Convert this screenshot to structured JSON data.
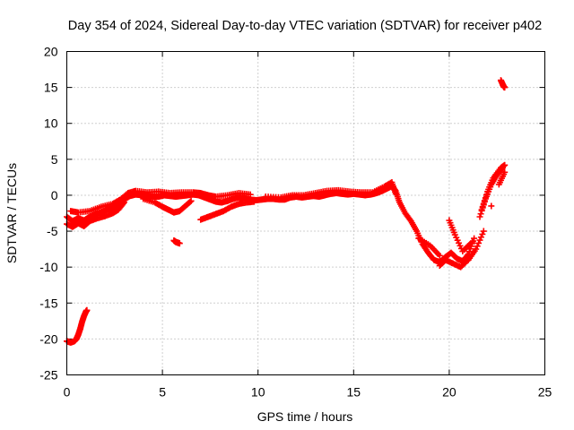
{
  "chart_data": {
    "type": "scatter",
    "title": "Day 354 of 2024, Sidereal Day-to-day VTEC variation (SDTVAR) for receiver p402",
    "xlabel": "GPS time / hours",
    "ylabel": "SDTVAR / TECUs",
    "xlim": [
      0,
      25
    ],
    "ylim": [
      -25,
      20
    ],
    "xticks": [
      0,
      5,
      10,
      15,
      20,
      25
    ],
    "yticks": [
      -25,
      -20,
      -15,
      -10,
      -5,
      0,
      5,
      10,
      15,
      20
    ],
    "grid": true,
    "marker": "+",
    "color": "#ff0000",
    "series": [
      {
        "name": "main-track",
        "points": [
          [
            0.0,
            -3.0
          ],
          [
            0.3,
            -3.6
          ],
          [
            0.6,
            -3.2
          ],
          [
            0.9,
            -3.5
          ],
          [
            1.2,
            -3.0
          ],
          [
            1.5,
            -2.6
          ],
          [
            1.8,
            -2.4
          ],
          [
            2.1,
            -2.0
          ],
          [
            2.4,
            -1.8
          ],
          [
            2.7,
            -1.4
          ],
          [
            3.0,
            -0.6
          ],
          [
            3.3,
            -0.1
          ],
          [
            3.6,
            0.1
          ],
          [
            3.9,
            0.0
          ],
          [
            4.2,
            -0.1
          ],
          [
            4.5,
            -0.2
          ],
          [
            4.8,
            -0.2
          ],
          [
            5.1,
            0.0
          ],
          [
            5.4,
            -0.1
          ],
          [
            5.7,
            -0.2
          ],
          [
            6.0,
            -0.1
          ],
          [
            6.3,
            0.0
          ],
          [
            6.6,
            0.1
          ],
          [
            6.9,
            0.0
          ],
          [
            7.2,
            -0.3
          ],
          [
            7.5,
            -0.6
          ],
          [
            7.8,
            -0.9
          ],
          [
            8.1,
            -1.0
          ],
          [
            8.4,
            -0.8
          ],
          [
            8.7,
            -0.5
          ],
          [
            9.0,
            -0.3
          ],
          [
            9.3,
            -0.4
          ],
          [
            9.6,
            -0.6
          ],
          [
            9.9,
            -0.7
          ],
          [
            10.2,
            -0.6
          ],
          [
            10.5,
            -0.5
          ],
          [
            10.8,
            -0.5
          ],
          [
            11.1,
            -0.6
          ],
          [
            11.4,
            -0.6
          ],
          [
            11.7,
            -0.3
          ],
          [
            12.0,
            -0.2
          ],
          [
            12.3,
            -0.3
          ],
          [
            12.6,
            -0.2
          ],
          [
            12.9,
            -0.1
          ],
          [
            13.2,
            -0.2
          ],
          [
            13.5,
            0.0
          ],
          [
            13.8,
            0.2
          ],
          [
            14.1,
            0.3
          ],
          [
            14.4,
            0.2
          ],
          [
            14.7,
            0.1
          ],
          [
            15.0,
            0.2
          ],
          [
            15.3,
            0.1
          ],
          [
            15.6,
            0.0
          ],
          [
            15.9,
            0.1
          ],
          [
            16.2,
            0.3
          ],
          [
            16.5,
            0.6
          ],
          [
            16.8,
            1.0
          ],
          [
            17.0,
            1.3
          ],
          [
            17.2,
            0.6
          ],
          [
            17.4,
            -1.0
          ],
          [
            17.7,
            -2.5
          ],
          [
            18.0,
            -3.6
          ],
          [
            18.3,
            -5.0
          ],
          [
            18.6,
            -6.8
          ],
          [
            18.9,
            -8.0
          ],
          [
            19.2,
            -9.0
          ],
          [
            19.5,
            -9.3
          ],
          [
            19.8,
            -8.6
          ],
          [
            20.1,
            -8.0
          ],
          [
            20.4,
            -8.8
          ],
          [
            20.7,
            -9.2
          ],
          [
            21.0,
            -8.2
          ],
          [
            21.3,
            -6.0
          ],
          [
            21.6,
            -3.0
          ],
          [
            21.9,
            -0.5
          ],
          [
            22.2,
            1.5
          ],
          [
            22.5,
            2.8
          ],
          [
            22.8,
            3.8
          ]
        ]
      },
      {
        "name": "lower-branch",
        "points": [
          [
            0.0,
            -4.0
          ],
          [
            0.3,
            -4.4
          ],
          [
            0.6,
            -3.9
          ],
          [
            0.9,
            -4.3
          ],
          [
            1.2,
            -3.6
          ],
          [
            1.6,
            -3.2
          ],
          [
            2.0,
            -2.9
          ],
          [
            2.4,
            -2.5
          ],
          [
            2.7,
            -2.0
          ],
          [
            3.0,
            -1.0
          ],
          [
            4.0,
            -0.5
          ],
          [
            4.6,
            -1.0
          ],
          [
            5.0,
            -1.6
          ],
          [
            5.3,
            -2.0
          ],
          [
            5.6,
            -2.4
          ],
          [
            5.9,
            -2.2
          ],
          [
            6.2,
            -1.5
          ],
          [
            6.5,
            -0.8
          ],
          [
            7.0,
            -3.4
          ],
          [
            7.4,
            -3.0
          ],
          [
            7.8,
            -2.6
          ],
          [
            8.2,
            -2.2
          ],
          [
            8.6,
            -1.6
          ],
          [
            9.0,
            -1.2
          ],
          [
            9.4,
            -1.0
          ],
          [
            9.8,
            -0.9
          ],
          [
            19.5,
            -9.8
          ],
          [
            19.8,
            -9.0
          ],
          [
            20.2,
            -9.5
          ],
          [
            20.6,
            -10.0
          ],
          [
            21.0,
            -9.0
          ],
          [
            21.4,
            -7.5
          ],
          [
            21.8,
            -5.0
          ],
          [
            22.2,
            -1.5
          ],
          [
            22.6,
            1.5
          ],
          [
            22.9,
            3.2
          ]
        ]
      },
      {
        "name": "upper-branch",
        "points": [
          [
            0.2,
            -2.2
          ],
          [
            0.6,
            -2.4
          ],
          [
            1.2,
            -2.2
          ],
          [
            1.8,
            -1.6
          ],
          [
            2.4,
            -1.2
          ],
          [
            2.8,
            -0.6
          ],
          [
            3.2,
            0.3
          ],
          [
            3.6,
            0.6
          ],
          [
            4.2,
            0.4
          ],
          [
            4.8,
            0.5
          ],
          [
            5.4,
            0.3
          ],
          [
            6.0,
            0.4
          ],
          [
            6.6,
            0.4
          ],
          [
            7.0,
            0.3
          ],
          [
            7.4,
            0.0
          ],
          [
            7.8,
            -0.2
          ],
          [
            8.4,
            0.0
          ],
          [
            9.0,
            0.3
          ],
          [
            9.6,
            0.1
          ],
          [
            10.4,
            -0.2
          ],
          [
            11.2,
            -0.3
          ],
          [
            11.8,
            0.0
          ],
          [
            12.4,
            0.0
          ],
          [
            13.0,
            0.3
          ],
          [
            13.6,
            0.6
          ],
          [
            14.2,
            0.7
          ],
          [
            14.8,
            0.5
          ],
          [
            15.4,
            0.4
          ],
          [
            16.0,
            0.4
          ],
          [
            16.6,
            1.2
          ],
          [
            17.0,
            1.8
          ],
          [
            17.2,
            0.2
          ],
          [
            18.4,
            -6.0
          ],
          [
            19.0,
            -7.0
          ],
          [
            19.5,
            -8.4
          ],
          [
            20.0,
            -3.5
          ],
          [
            20.3,
            -5.5
          ],
          [
            20.7,
            -7.8
          ],
          [
            21.2,
            -6.5
          ],
          [
            21.7,
            -2.0
          ],
          [
            22.0,
            0.5
          ],
          [
            22.3,
            2.4
          ],
          [
            22.7,
            3.8
          ],
          [
            22.9,
            4.2
          ]
        ]
      },
      {
        "name": "early-rise",
        "points": [
          [
            0.0,
            -20.3
          ],
          [
            0.2,
            -20.5
          ],
          [
            0.4,
            -20.3
          ],
          [
            0.5,
            -20.0
          ],
          [
            0.6,
            -19.4
          ],
          [
            0.7,
            -18.6
          ],
          [
            0.8,
            -17.6
          ],
          [
            0.9,
            -16.8
          ],
          [
            1.0,
            -16.2
          ],
          [
            1.05,
            -16.0
          ]
        ]
      },
      {
        "name": "isolated-cluster",
        "points": [
          [
            5.6,
            -6.3
          ],
          [
            5.7,
            -6.5
          ],
          [
            5.8,
            -6.6
          ],
          [
            5.9,
            -6.7
          ]
        ]
      },
      {
        "name": "late-outlier",
        "points": [
          [
            22.7,
            16.0
          ],
          [
            22.8,
            15.4
          ],
          [
            22.85,
            15.1
          ],
          [
            22.9,
            15.0
          ]
        ]
      }
    ]
  }
}
